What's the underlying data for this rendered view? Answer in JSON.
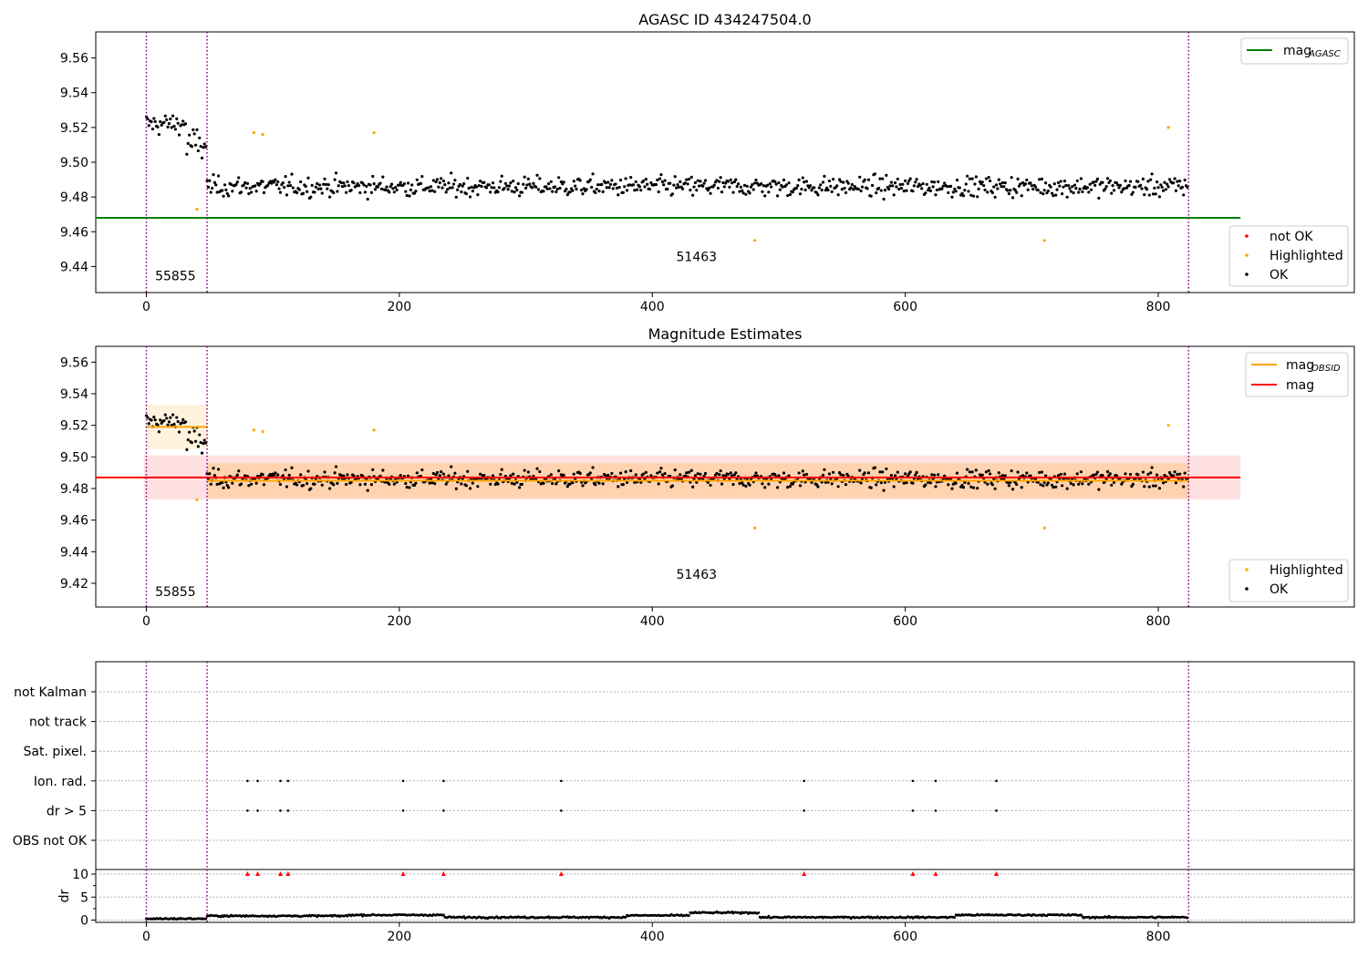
{
  "chart_data": [
    {
      "type": "scatter",
      "title": "AGASC ID 434247504.0",
      "xlim": [
        -40,
        955
      ],
      "ylim": [
        9.425,
        9.575
      ],
      "xticks": [
        0,
        200,
        400,
        600,
        800
      ],
      "yticks": [
        9.44,
        9.46,
        9.48,
        9.5,
        9.52,
        9.54,
        9.56
      ],
      "obsid_boundaries": [
        0,
        48,
        824
      ],
      "obsid_labels": [
        {
          "text": "55855",
          "x": 23,
          "y": 9.432
        },
        {
          "text": "51463",
          "x": 435,
          "y": 9.443
        }
      ],
      "reference_line": {
        "name": "mag_AGASC",
        "y": 9.468,
        "x": [
          -40,
          865
        ],
        "color": "#008000"
      },
      "series_legend": [
        "not OK",
        "Highlighted",
        "OK"
      ],
      "series_colors": {
        "not OK": "#ff0000",
        "Highlighted": "#ffa500",
        "OK": "#000000"
      },
      "legend_lines": [
        {
          "label": "mag",
          "sub": "AGASC",
          "color": "#008000"
        }
      ],
      "highlighted": [
        [
          40,
          9.473
        ],
        [
          85,
          9.517
        ],
        [
          92,
          9.516
        ],
        [
          180,
          9.517
        ],
        [
          481,
          9.455
        ],
        [
          710,
          9.455
        ],
        [
          808,
          9.52
        ]
      ],
      "ok_segments": [
        {
          "x0": 0,
          "x1": 32,
          "center": 9.522,
          "spread": 0.011,
          "step": 1
        },
        {
          "x0": 32,
          "x1": 48,
          "center": 9.51,
          "spread": 0.018,
          "step": 1
        },
        {
          "x0": 48,
          "x1": 824,
          "center": 9.486,
          "spread": 0.01,
          "step": 1
        }
      ]
    },
    {
      "type": "scatter",
      "title": "Magnitude Estimates",
      "xlim": [
        -40,
        955
      ],
      "ylim": [
        9.405,
        9.57
      ],
      "xticks": [
        0,
        200,
        400,
        600,
        800
      ],
      "yticks": [
        9.42,
        9.44,
        9.46,
        9.48,
        9.5,
        9.52,
        9.54,
        9.56
      ],
      "obsid_boundaries": [
        0,
        48,
        824
      ],
      "obsid_labels": [
        {
          "text": "55855",
          "x": 23,
          "y": 9.412
        },
        {
          "text": "51463",
          "x": 435,
          "y": 9.423
        }
      ],
      "bands": [
        {
          "x": [
            -2,
            865
          ],
          "y": [
            9.473,
            9.501
          ],
          "color": "#ff0000",
          "opacity": 0.12
        },
        {
          "x": [
            48,
            824
          ],
          "y": [
            9.474,
            9.496
          ],
          "color": "#ffa500",
          "opacity": 0.22
        },
        {
          "x": [
            0,
            48
          ],
          "y": [
            9.505,
            9.533
          ],
          "color": "#ffa500",
          "opacity": 0.13
        }
      ],
      "lines": [
        {
          "name": "mag",
          "y": 9.487,
          "x": [
            -40,
            865
          ],
          "color": "#ff0000"
        },
        {
          "name": "mag_OBSID",
          "y": 9.519,
          "x": [
            0,
            48
          ],
          "color": "#ffa500"
        },
        {
          "name": "mag_OBSID",
          "y": 9.485,
          "x": [
            48,
            824
          ],
          "color": "#ffa500"
        }
      ],
      "series_legend": [
        "Highlighted",
        "OK"
      ],
      "legend_lines": [
        {
          "label": "mag",
          "sub": "OBSID",
          "color": "#ffa500"
        },
        {
          "label": "mag",
          "sub": "",
          "color": "#ff0000"
        }
      ],
      "highlighted": [
        [
          40,
          9.473
        ],
        [
          85,
          9.517
        ],
        [
          92,
          9.516
        ],
        [
          180,
          9.517
        ],
        [
          481,
          9.455
        ],
        [
          710,
          9.455
        ],
        [
          808,
          9.52
        ]
      ]
    },
    {
      "type": "scatter",
      "xlim": [
        -40,
        955
      ],
      "flag_rows": [
        "not Kalman",
        "not track",
        "Sat. pixel.",
        "Ion. rad.",
        "dr > 5",
        "OBS not OK"
      ],
      "flag_points_x": [
        80,
        88,
        106,
        112,
        203,
        235,
        328,
        520,
        606,
        624,
        672
      ],
      "flag_rows_with_points": [
        "Ion. rad.",
        "dr > 5"
      ],
      "dr": {
        "ylabel": "dr",
        "ylim": [
          -0.5,
          11
        ],
        "yticks": [
          0,
          5,
          10
        ],
        "xticks": [
          0,
          200,
          400,
          600,
          800
        ],
        "overflow_markers_y": 10,
        "overflow_marker_color": "#ff0000",
        "segments": [
          {
            "x0": 0,
            "x1": 48,
            "level": 0.3
          },
          {
            "x0": 48,
            "x1": 160,
            "level": 0.9
          },
          {
            "x0": 160,
            "x1": 236,
            "level": 1.1
          },
          {
            "x0": 236,
            "x1": 380,
            "level": 0.6
          },
          {
            "x0": 380,
            "x1": 430,
            "level": 1.0
          },
          {
            "x0": 430,
            "x1": 485,
            "level": 1.6
          },
          {
            "x0": 485,
            "x1": 640,
            "level": 0.6
          },
          {
            "x0": 640,
            "x1": 740,
            "level": 1.1
          },
          {
            "x0": 740,
            "x1": 824,
            "level": 0.6
          }
        ]
      }
    }
  ]
}
